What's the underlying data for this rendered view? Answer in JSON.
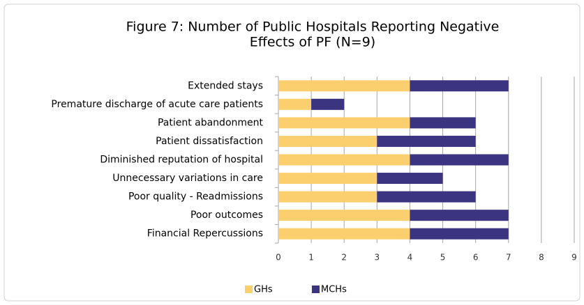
{
  "chart_data": {
    "type": "bar",
    "orientation": "horizontal",
    "stacked": true,
    "title": [
      "Figure 7: Number of Public Hospitals Reporting Negative",
      "Effects of PF (N=9)"
    ],
    "categories": [
      "Extended stays",
      "Premature discharge of acute care patients",
      "Patient abandonment",
      "Patient dissatisfaction",
      "Diminished reputation of hospital",
      "Unnecessary variations in care",
      "Poor quality - Readmissions",
      "Poor outcomes",
      "Financial Repercussions"
    ],
    "series": [
      {
        "name": "GHs",
        "color": "#fbcf6e",
        "values": [
          4,
          1,
          4,
          3,
          4,
          3,
          3,
          4,
          4
        ]
      },
      {
        "name": "MCHs",
        "color": "#3b3480",
        "values": [
          3,
          1,
          2,
          3,
          3,
          2,
          3,
          3,
          3
        ]
      }
    ],
    "xlim": [
      0,
      9
    ],
    "xticks": [
      0,
      1,
      2,
      3,
      4,
      5,
      6,
      7,
      8,
      9
    ],
    "grid": true,
    "legend": "bottom"
  }
}
